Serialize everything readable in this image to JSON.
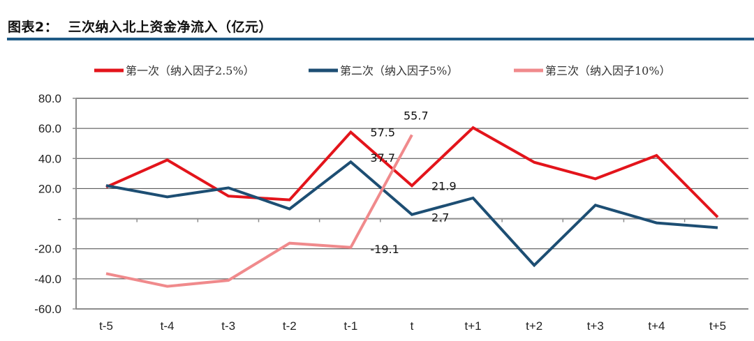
{
  "header": {
    "figure_label": "图表2：",
    "title": "三次纳入北上资金净流入（亿元）"
  },
  "chart_data": {
    "type": "line",
    "title": "三次纳入北上资金净流入（亿元）",
    "xlabel": "",
    "ylabel": "",
    "categories": [
      "t-5",
      "t-4",
      "t-3",
      "t-2",
      "t-1",
      "t",
      "t+1",
      "t+2",
      "t+3",
      "t+4",
      "t+5"
    ],
    "ylim": [
      -60,
      80
    ],
    "yticks": [
      80,
      60,
      40,
      20,
      0,
      -20,
      -40,
      -60
    ],
    "ytick_labels": [
      "80.0",
      "60.0",
      "40.0",
      "20.0",
      "-",
      "-20.0",
      "-40.0",
      "-60.0"
    ],
    "grid": true,
    "legend_position": "top",
    "series": [
      {
        "name": "第一次（纳入因子2.5%）",
        "color": "#e3141b",
        "values": [
          21.0,
          39.0,
          15.0,
          12.5,
          57.5,
          21.9,
          60.5,
          37.5,
          26.5,
          42.0,
          1.0
        ]
      },
      {
        "name": "第二次（纳入因子5%）",
        "color": "#1d4e73",
        "values": [
          22.0,
          14.5,
          20.5,
          6.5,
          37.7,
          2.7,
          13.7,
          -31.0,
          9.0,
          -2.8,
          -6.0
        ]
      },
      {
        "name": "第三次（纳入因子10%）",
        "color": "#f08a8c",
        "values": [
          -36.5,
          -45.0,
          -41.0,
          -16.3,
          -19.1,
          55.7,
          null,
          null,
          null,
          null,
          null
        ]
      }
    ],
    "annotations": [
      {
        "text": "57.5",
        "series": 0,
        "category": "t-1"
      },
      {
        "text": "37.7",
        "series": 1,
        "category": "t-1"
      },
      {
        "text": "-19.1",
        "series": 2,
        "category": "t-1"
      },
      {
        "text": "55.7",
        "series": 2,
        "category": "t"
      },
      {
        "text": "21.9",
        "series": 0,
        "category": "t"
      },
      {
        "text": "2.7",
        "series": 1,
        "category": "t"
      }
    ]
  }
}
